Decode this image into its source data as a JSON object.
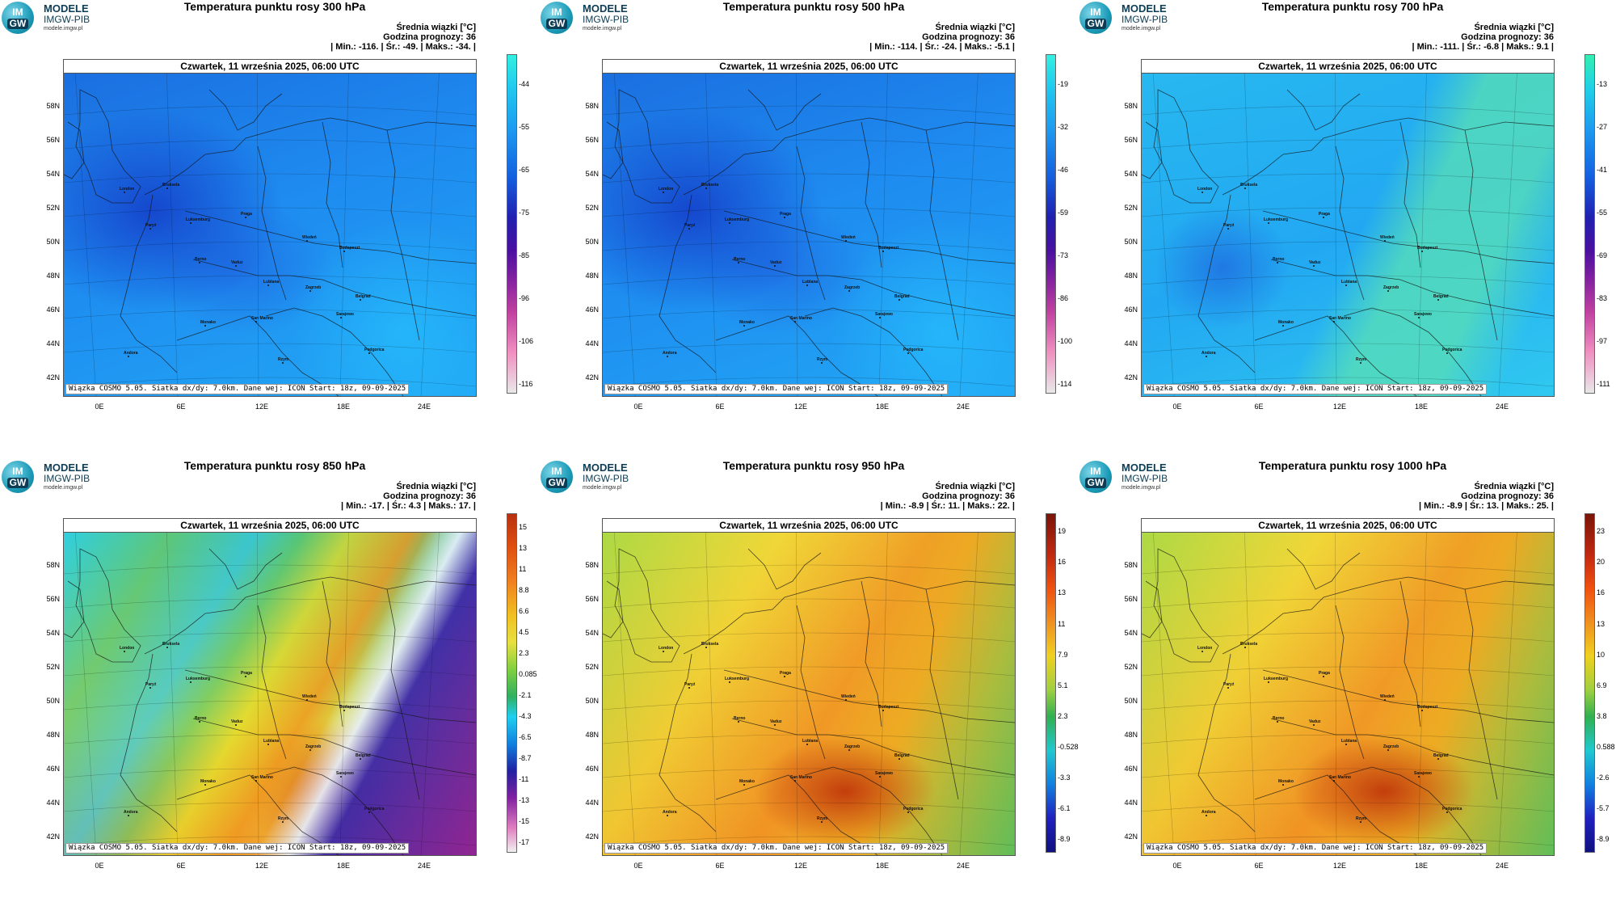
{
  "logo": {
    "mark_top": "IM",
    "mark_bottom": "GW",
    "name": "MODELE",
    "org": "IMGW-PIB",
    "url": "modele.imgw.pl"
  },
  "common": {
    "date": "Czwartek, 11 września 2025, 06:00 UTC",
    "stats_line1": "Średnia wiązki [°C]",
    "stats_line2": "Godzina prognozy: 36",
    "footer": "Wiązka COSMO 5.05. Siatka dx/dy: 7.0km. Dane wej: ICON Start: 18z, 09-09-2025",
    "lat_labels": [
      "58N",
      "56N",
      "54N",
      "52N",
      "50N",
      "48N",
      "46N",
      "44N",
      "42N"
    ],
    "lon_labels": [
      "0E",
      "6E",
      "12E",
      "18E",
      "24E"
    ],
    "cities": [
      "London",
      "Bruksela",
      "Paryż",
      "Luksemburg",
      "Praga",
      "Wiedeń",
      "Budapeszt",
      "Berno",
      "Vaduz",
      "Zagrzeb",
      "Lublana",
      "Belgrad",
      "San Marino",
      "Sarajewo",
      "Monako",
      "Andora",
      "Rzym",
      "Podgorica"
    ]
  },
  "panels": [
    {
      "title": "Temperatura punktu rosy 300 hPa",
      "stats_line3": "| Min.:   -116. | Śr.:   -49. | Maks.:   -34. |",
      "colorbar_labels": [
        "-44",
        "-55",
        "-65",
        "-75",
        "-85",
        "-96",
        "-106",
        "-116"
      ],
      "palette": "cold"
    },
    {
      "title": "Temperatura punktu rosy 500 hPa",
      "stats_line3": "| Min.:   -114. | Śr.:   -24. | Maks.:   -5.1 |",
      "colorbar_labels": [
        "-19",
        "-32",
        "-46",
        "-59",
        "-73",
        "-86",
        "-100",
        "-114"
      ],
      "palette": "cold"
    },
    {
      "title": "Temperatura punktu rosy 700 hPa",
      "stats_line3": "| Min.:   -111. | Śr.:   -6.8 | Maks.:   9.1 |",
      "colorbar_labels": [
        "-13",
        "-27",
        "-41",
        "-55",
        "-69",
        "-83",
        "-97",
        "-111"
      ],
      "palette": "cold2"
    },
    {
      "title": "Temperatura punktu rosy 850 hPa",
      "stats_line3": "| Min.:   -17. | Śr.:   4.3 | Maks.:   17. |",
      "colorbar_labels": [
        "15",
        "13",
        "11",
        "8.8",
        "6.6",
        "4.5",
        "2.3",
        "0.085",
        "-2.1",
        "-4.3",
        "-6.5",
        "-8.7",
        "-11",
        "-13",
        "-15",
        "-17"
      ],
      "palette": "warm850"
    },
    {
      "title": "Temperatura punktu rosy 950 hPa",
      "stats_line3": "| Min.:   -8.9 | Śr.:   11. | Maks.:   22. |",
      "colorbar_labels": [
        "19",
        "16",
        "13",
        "11",
        "7.9",
        "5.1",
        "2.3",
        "-0.528",
        "-3.3",
        "-6.1",
        "-8.9"
      ],
      "palette": "warm"
    },
    {
      "title": "Temperatura punktu rosy 1000 hPa",
      "stats_line3": "| Min.:   -8.9 | Śr.:   13. | Maks.:   25. |",
      "colorbar_labels": [
        "23",
        "20",
        "16",
        "13",
        "10",
        "6.9",
        "3.8",
        "0.588",
        "-2.6",
        "-5.7",
        "-8.9"
      ],
      "palette": "warm"
    }
  ]
}
